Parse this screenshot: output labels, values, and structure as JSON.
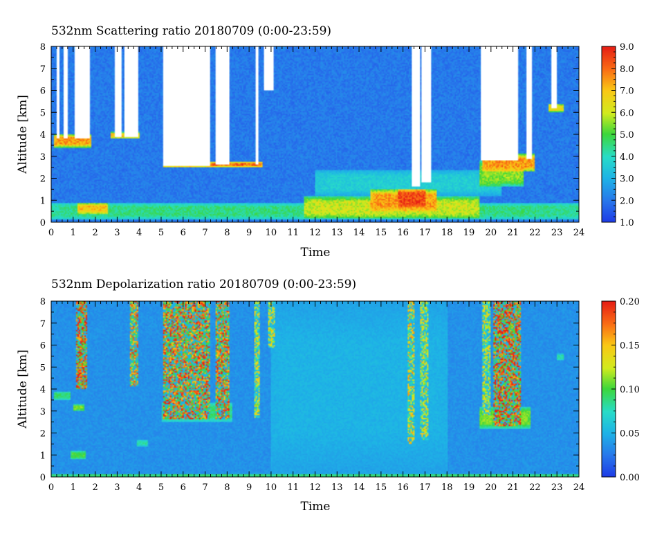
{
  "panels": [
    {
      "id": "scattering",
      "title": "532nm Scattering ratio  20180709 (0:00-23:59)",
      "xlabel": "Time",
      "ylabel": "Altitude [km]",
      "x_ticks": [
        "0",
        "1",
        "2",
        "3",
        "4",
        "5",
        "6",
        "7",
        "8",
        "9",
        "10",
        "11",
        "12",
        "13",
        "14",
        "15",
        "16",
        "17",
        "18",
        "19",
        "20",
        "21",
        "22",
        "23",
        "24"
      ],
      "y_ticks": [
        "0",
        "1",
        "2",
        "3",
        "4",
        "5",
        "6",
        "7",
        "8"
      ],
      "colorbar_ticks": [
        "1.0",
        "2.0",
        "3.0",
        "4.0",
        "5.0",
        "6.0",
        "7.0",
        "8.0",
        "9.0"
      ]
    },
    {
      "id": "depolarization",
      "title": "532nm Depolarization ratio  20180709 (0:00-23:59)",
      "xlabel": "Time",
      "ylabel": "Altitude [km]",
      "x_ticks": [
        "0",
        "1",
        "2",
        "3",
        "4",
        "5",
        "6",
        "7",
        "8",
        "9",
        "10",
        "11",
        "12",
        "13",
        "14",
        "15",
        "16",
        "17",
        "18",
        "19",
        "20",
        "21",
        "22",
        "23",
        "24"
      ],
      "y_ticks": [
        "0",
        "1",
        "2",
        "3",
        "4",
        "5",
        "6",
        "7",
        "8"
      ],
      "colorbar_ticks": [
        "0.00",
        "0.05",
        "0.10",
        "0.15",
        "0.20"
      ]
    }
  ],
  "chart_data": [
    {
      "type": "heatmap",
      "title": "532nm Scattering ratio  20180709 (0:00-23:59)",
      "xlabel": "Time",
      "ylabel": "Altitude [km]",
      "xlim": [
        0,
        24
      ],
      "ylim": [
        0,
        8
      ],
      "x_unit": "hour (UTC)",
      "y_unit": "km",
      "colorbar": {
        "min": 1.0,
        "max": 9.0,
        "ticks": [
          1.0,
          2.0,
          3.0,
          4.0,
          5.0,
          6.0,
          7.0,
          8.0,
          9.0
        ],
        "colormap": "rainbow (blue-cyan-green-yellow-red)"
      },
      "background_value": 2.0,
      "no_data_color": "#ffffff",
      "cloud_gaps": [
        {
          "x0": 0.25,
          "x1": 0.4,
          "y0": 3.8,
          "y1": 8.0
        },
        {
          "x0": 0.55,
          "x1": 0.75,
          "y0": 3.8,
          "y1": 8.0
        },
        {
          "x0": 1.05,
          "x1": 1.75,
          "y0": 3.8,
          "y1": 8.0
        },
        {
          "x0": 2.9,
          "x1": 3.2,
          "y0": 3.9,
          "y1": 8.0
        },
        {
          "x0": 3.35,
          "x1": 3.95,
          "y0": 3.9,
          "y1": 8.0
        },
        {
          "x0": 5.1,
          "x1": 7.25,
          "y0": 2.55,
          "y1": 8.0
        },
        {
          "x0": 7.45,
          "x1": 8.1,
          "y0": 2.6,
          "y1": 8.0
        },
        {
          "x0": 9.3,
          "x1": 9.45,
          "y0": 2.65,
          "y1": 8.0
        },
        {
          "x0": 9.7,
          "x1": 10.1,
          "y0": 6.0,
          "y1": 8.0
        },
        {
          "x0": 16.4,
          "x1": 16.75,
          "y0": 1.6,
          "y1": 8.0
        },
        {
          "x0": 16.85,
          "x1": 17.3,
          "y0": 1.8,
          "y1": 8.0
        },
        {
          "x0": 19.55,
          "x1": 21.25,
          "y0": 2.8,
          "y1": 8.0
        },
        {
          "x0": 21.6,
          "x1": 21.85,
          "y0": 2.9,
          "y1": 8.0
        },
        {
          "x0": 22.75,
          "x1": 23.0,
          "y0": 5.2,
          "y1": 8.0
        }
      ],
      "features": [
        {
          "x0": 0.0,
          "x1": 24.0,
          "y0": 0.1,
          "y1": 0.9,
          "value": 4.5
        },
        {
          "x0": 1.2,
          "x1": 2.6,
          "y0": 0.4,
          "y1": 0.85,
          "value": 7.0
        },
        {
          "x0": 11.5,
          "x1": 19.5,
          "y0": 0.2,
          "y1": 1.2,
          "value": 6.0
        },
        {
          "x0": 14.5,
          "x1": 17.5,
          "y0": 0.5,
          "y1": 1.5,
          "value": 7.5
        },
        {
          "x0": 15.8,
          "x1": 17.0,
          "y0": 0.7,
          "y1": 1.5,
          "value": 8.5
        },
        {
          "x0": 12.0,
          "x1": 20.5,
          "y0": 1.2,
          "y1": 2.4,
          "value": 3.6
        },
        {
          "x0": 19.5,
          "x1": 21.5,
          "y0": 1.6,
          "y1": 2.8,
          "value": 5.5
        },
        {
          "x0": 5.1,
          "x1": 9.6,
          "y0": 2.5,
          "y1": 2.75,
          "value": 8.0
        },
        {
          "x0": 0.1,
          "x1": 1.8,
          "y0": 3.4,
          "y1": 4.0,
          "value": 7.5
        },
        {
          "x0": 2.7,
          "x1": 4.0,
          "y0": 3.8,
          "y1": 4.1,
          "value": 7.0
        },
        {
          "x0": 19.6,
          "x1": 22.0,
          "y0": 2.3,
          "y1": 3.1,
          "value": 7.5
        },
        {
          "x0": 22.6,
          "x1": 23.3,
          "y0": 5.0,
          "y1": 5.4,
          "value": 6.5
        }
      ]
    },
    {
      "type": "heatmap",
      "title": "532nm Depolarization ratio  20180709 (0:00-23:59)",
      "xlabel": "Time",
      "ylabel": "Altitude [km]",
      "xlim": [
        0,
        24
      ],
      "ylim": [
        0,
        8
      ],
      "x_unit": "hour (UTC)",
      "y_unit": "km",
      "colorbar": {
        "min": 0.0,
        "max": 0.2,
        "ticks": [
          0.0,
          0.05,
          0.1,
          0.15,
          0.2
        ],
        "colormap": "rainbow (blue-cyan-green-yellow-red)"
      },
      "background_value": 0.035,
      "noise_columns": [
        {
          "x0": 1.1,
          "x1": 1.65,
          "y0": 4.0,
          "y1": 8.0,
          "value": 0.17
        },
        {
          "x0": 3.6,
          "x1": 3.95,
          "y0": 4.1,
          "y1": 8.0,
          "value": 0.15
        },
        {
          "x0": 5.1,
          "x1": 7.25,
          "y0": 2.6,
          "y1": 8.0,
          "value": 0.16
        },
        {
          "x0": 7.45,
          "x1": 8.1,
          "y0": 2.6,
          "y1": 8.0,
          "value": 0.16
        },
        {
          "x0": 9.25,
          "x1": 9.5,
          "y0": 2.7,
          "y1": 8.0,
          "value": 0.12
        },
        {
          "x0": 9.85,
          "x1": 10.15,
          "y0": 5.9,
          "y1": 8.0,
          "value": 0.12
        },
        {
          "x0": 16.2,
          "x1": 16.55,
          "y0": 1.5,
          "y1": 8.0,
          "value": 0.13
        },
        {
          "x0": 16.8,
          "x1": 17.15,
          "y0": 1.7,
          "y1": 8.0,
          "value": 0.12
        },
        {
          "x0": 19.6,
          "x1": 19.95,
          "y0": 2.8,
          "y1": 8.0,
          "value": 0.12
        },
        {
          "x0": 20.1,
          "x1": 21.35,
          "y0": 2.3,
          "y1": 8.0,
          "value": 0.17
        }
      ],
      "features": [
        {
          "x0": 0.0,
          "x1": 24.0,
          "y0": 0.0,
          "y1": 0.15,
          "value": 0.09
        },
        {
          "x0": 0.1,
          "x1": 0.9,
          "y0": 3.5,
          "y1": 3.9,
          "value": 0.09
        },
        {
          "x0": 1.0,
          "x1": 1.5,
          "y0": 3.0,
          "y1": 3.3,
          "value": 0.11
        },
        {
          "x0": 0.9,
          "x1": 1.6,
          "y0": 0.8,
          "y1": 1.2,
          "value": 0.1
        },
        {
          "x0": 3.9,
          "x1": 4.4,
          "y0": 1.4,
          "y1": 1.7,
          "value": 0.08
        },
        {
          "x0": 5.0,
          "x1": 8.2,
          "y0": 2.5,
          "y1": 3.4,
          "value": 0.09
        },
        {
          "x0": 19.5,
          "x1": 21.8,
          "y0": 2.2,
          "y1": 3.2,
          "value": 0.11
        },
        {
          "x0": 23.0,
          "x1": 23.3,
          "y0": 5.3,
          "y1": 5.6,
          "value": 0.08
        },
        {
          "x0": 10.0,
          "x1": 18.0,
          "y0": 0.15,
          "y1": 8.0,
          "value": 0.05
        }
      ]
    }
  ]
}
